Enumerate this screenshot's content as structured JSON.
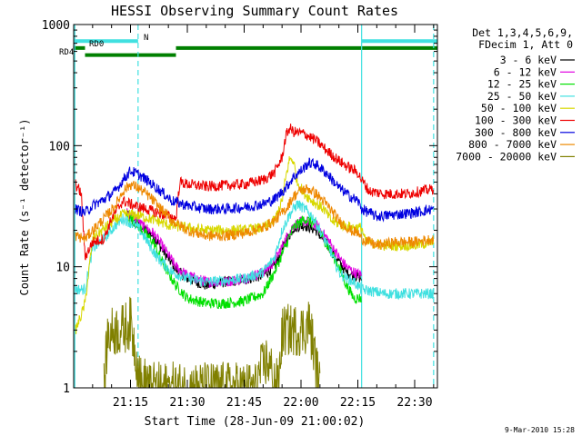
{
  "chart_data": {
    "type": "line",
    "title": "HESSI Observing Summary Count Rates",
    "xlabel": "Start Time (28-Jun-09 21:00:02)",
    "ylabel": "Count Rate (s⁻¹ detector⁻¹)",
    "y_scale": "log",
    "ylim": [
      1,
      1000
    ],
    "xlim_minutes": [
      0,
      96
    ],
    "x_ticks": [
      {
        "minute": 15,
        "label": "21:15"
      },
      {
        "minute": 30,
        "label": "21:30"
      },
      {
        "minute": 45,
        "label": "21:45"
      },
      {
        "minute": 60,
        "label": "22:00"
      },
      {
        "minute": 75,
        "label": "22:15"
      },
      {
        "minute": 90,
        "label": "22:30"
      }
    ],
    "y_ticks": [
      {
        "value": 1,
        "label": "1"
      },
      {
        "value": 10,
        "label": "10"
      },
      {
        "value": 100,
        "label": "100"
      },
      {
        "value": 1000,
        "label": "1000"
      }
    ],
    "legend_header": [
      "Det 1,3,4,5,6,9,",
      "FDecim 1, Att 0"
    ],
    "legend_position": "right",
    "flags": [
      {
        "label": "N",
        "color": "#40e0e0",
        "segments": [
          [
            0,
            17
          ],
          [
            76,
            96
          ]
        ],
        "level": 730
      },
      {
        "label": "RD0",
        "color": "#008000",
        "segments": [
          [
            0,
            3
          ],
          [
            27,
            96
          ]
        ],
        "level": 640
      },
      {
        "label": "RD4",
        "color": "#008000",
        "segments": [
          [
            3,
            27
          ]
        ],
        "level": 560
      }
    ],
    "vlines_solid": [
      0.3,
      76
    ],
    "vlines_dashed": [
      17,
      95
    ],
    "series": [
      {
        "name": "3 - 6 keV",
        "color": "#000000",
        "points": [
          [
            14,
            27
          ],
          [
            16,
            23
          ],
          [
            18,
            21
          ],
          [
            21,
            18
          ],
          [
            24,
            13
          ],
          [
            27,
            9.5
          ],
          [
            30,
            8
          ],
          [
            35,
            7
          ],
          [
            40,
            7.5
          ],
          [
            45,
            7.8
          ],
          [
            50,
            8.5
          ],
          [
            53,
            10
          ],
          [
            56,
            16
          ],
          [
            58,
            21
          ],
          [
            61,
            22
          ],
          [
            64,
            20
          ],
          [
            67,
            15
          ],
          [
            70,
            11
          ],
          [
            72,
            9
          ],
          [
            74,
            8.5
          ],
          [
            76,
            8
          ]
        ]
      },
      {
        "name": "6 - 12 keV",
        "color": "#e000e0",
        "points": [
          [
            14,
            28
          ],
          [
            16,
            26
          ],
          [
            18,
            22
          ],
          [
            21,
            19
          ],
          [
            24,
            14
          ],
          [
            27,
            10
          ],
          [
            30,
            8.5
          ],
          [
            35,
            7.5
          ],
          [
            40,
            7.5
          ],
          [
            45,
            8
          ],
          [
            50,
            9
          ],
          [
            53,
            11
          ],
          [
            56,
            17
          ],
          [
            58,
            22
          ],
          [
            61,
            24
          ],
          [
            64,
            22
          ],
          [
            67,
            17
          ],
          [
            70,
            12
          ],
          [
            72,
            10
          ],
          [
            74,
            9
          ],
          [
            76,
            8.5
          ]
        ]
      },
      {
        "name": "12 - 25 keV",
        "color": "#00e000",
        "points": [
          [
            14,
            26
          ],
          [
            16,
            24
          ],
          [
            18,
            20
          ],
          [
            21,
            16
          ],
          [
            24,
            10
          ],
          [
            27,
            7
          ],
          [
            30,
            5.5
          ],
          [
            35,
            5
          ],
          [
            40,
            5
          ],
          [
            45,
            5.2
          ],
          [
            50,
            6
          ],
          [
            53,
            9
          ],
          [
            56,
            15
          ],
          [
            58,
            21
          ],
          [
            61,
            25
          ],
          [
            64,
            22
          ],
          [
            67,
            15
          ],
          [
            70,
            10
          ],
          [
            72,
            7
          ],
          [
            74,
            5.5
          ],
          [
            76,
            5.5
          ]
        ]
      },
      {
        "name": "25 - 50 keV",
        "color": "#40e0e0",
        "points": [
          [
            0.5,
            6.5
          ],
          [
            3,
            6.5
          ],
          [
            5,
            14
          ],
          [
            8,
            17
          ],
          [
            11,
            22
          ],
          [
            13,
            25
          ],
          [
            15,
            23
          ],
          [
            17,
            21
          ],
          [
            19,
            17
          ],
          [
            22,
            12
          ],
          [
            26,
            9
          ],
          [
            30,
            8
          ],
          [
            35,
            7.5
          ],
          [
            40,
            7.7
          ],
          [
            45,
            8
          ],
          [
            50,
            9
          ],
          [
            53,
            12
          ],
          [
            55,
            20
          ],
          [
            57,
            27
          ],
          [
            59,
            33
          ],
          [
            61,
            30
          ],
          [
            63,
            26
          ],
          [
            65,
            20
          ],
          [
            68,
            13
          ],
          [
            70,
            9
          ],
          [
            72,
            8
          ],
          [
            74,
            7.5
          ],
          [
            76,
            6.5
          ],
          [
            82,
            6
          ],
          [
            90,
            6
          ],
          [
            95,
            6
          ]
        ]
      },
      {
        "name": "50 - 100 keV",
        "color": "#d8d800",
        "points": [
          [
            0.5,
            3
          ],
          [
            2,
            4
          ],
          [
            3,
            5
          ],
          [
            5,
            17
          ],
          [
            9,
            22
          ],
          [
            13,
            27
          ],
          [
            16,
            27
          ],
          [
            18,
            26
          ],
          [
            22,
            24
          ],
          [
            25,
            22
          ],
          [
            30,
            21
          ],
          [
            35,
            20
          ],
          [
            40,
            20
          ],
          [
            45,
            20
          ],
          [
            50,
            21
          ],
          [
            53,
            24
          ],
          [
            55,
            35
          ],
          [
            56,
            55
          ],
          [
            57,
            78
          ],
          [
            58,
            75
          ],
          [
            59,
            50
          ],
          [
            61,
            40
          ],
          [
            63,
            35
          ],
          [
            66,
            30
          ],
          [
            68,
            24
          ],
          [
            71,
            22
          ],
          [
            74,
            21
          ],
          [
            76,
            21
          ],
          [
            77,
            16
          ],
          [
            82,
            15
          ],
          [
            90,
            15
          ],
          [
            95,
            16
          ]
        ]
      },
      {
        "name": "100 - 300 keV",
        "color": "#ee0000",
        "points": [
          [
            0.5,
            48
          ],
          [
            2,
            40
          ],
          [
            3,
            12
          ],
          [
            5,
            16
          ],
          [
            8,
            17
          ],
          [
            10,
            25
          ],
          [
            13,
            35
          ],
          [
            16,
            32
          ],
          [
            19,
            30
          ],
          [
            22,
            28
          ],
          [
            25,
            26
          ],
          [
            27,
            25
          ],
          [
            28,
            50
          ],
          [
            30,
            48
          ],
          [
            35,
            46
          ],
          [
            40,
            47
          ],
          [
            45,
            48
          ],
          [
            50,
            52
          ],
          [
            53,
            60
          ],
          [
            55,
            80
          ],
          [
            56,
            120
          ],
          [
            57,
            140
          ],
          [
            58,
            130
          ],
          [
            61,
            125
          ],
          [
            64,
            110
          ],
          [
            67,
            90
          ],
          [
            70,
            75
          ],
          [
            73,
            65
          ],
          [
            75,
            60
          ],
          [
            76,
            52
          ],
          [
            78,
            42
          ],
          [
            82,
            40
          ],
          [
            88,
            40
          ],
          [
            95,
            44
          ]
        ]
      },
      {
        "name": "300 - 800 keV",
        "color": "#0000e0",
        "points": [
          [
            0.5,
            30
          ],
          [
            3,
            28
          ],
          [
            5,
            32
          ],
          [
            8,
            36
          ],
          [
            11,
            42
          ],
          [
            13,
            52
          ],
          [
            15,
            62
          ],
          [
            17,
            58
          ],
          [
            20,
            50
          ],
          [
            23,
            42
          ],
          [
            26,
            35
          ],
          [
            30,
            32
          ],
          [
            35,
            30
          ],
          [
            40,
            30
          ],
          [
            45,
            31
          ],
          [
            50,
            33
          ],
          [
            53,
            36
          ],
          [
            56,
            45
          ],
          [
            58,
            55
          ],
          [
            60,
            62
          ],
          [
            62,
            72
          ],
          [
            64,
            70
          ],
          [
            67,
            58
          ],
          [
            70,
            45
          ],
          [
            73,
            38
          ],
          [
            75,
            35
          ],
          [
            76,
            30
          ],
          [
            80,
            26
          ],
          [
            85,
            27
          ],
          [
            90,
            28
          ],
          [
            95,
            30
          ]
        ]
      },
      {
        "name": "800 - 7000 keV",
        "color": "#ee8800",
        "points": [
          [
            0.5,
            18
          ],
          [
            3,
            17
          ],
          [
            5,
            20
          ],
          [
            8,
            25
          ],
          [
            11,
            32
          ],
          [
            13,
            42
          ],
          [
            15,
            48
          ],
          [
            17,
            45
          ],
          [
            20,
            38
          ],
          [
            23,
            30
          ],
          [
            26,
            24
          ],
          [
            30,
            20
          ],
          [
            35,
            18
          ],
          [
            40,
            18
          ],
          [
            45,
            19
          ],
          [
            50,
            21
          ],
          [
            53,
            24
          ],
          [
            56,
            30
          ],
          [
            58,
            38
          ],
          [
            60,
            43
          ],
          [
            62,
            44
          ],
          [
            64,
            40
          ],
          [
            67,
            32
          ],
          [
            70,
            24
          ],
          [
            73,
            20
          ],
          [
            75,
            19
          ],
          [
            76,
            17
          ],
          [
            80,
            15
          ],
          [
            85,
            16
          ],
          [
            90,
            16
          ],
          [
            95,
            17
          ]
        ]
      },
      {
        "name": "7000 - 20000 keV",
        "color": "#808000",
        "points": [
          [
            8,
            1
          ],
          [
            9,
            2.7
          ],
          [
            11,
            3
          ],
          [
            13,
            3
          ],
          [
            15,
            3.5
          ],
          [
            17,
            1.5
          ],
          [
            18,
            1
          ],
          [
            19.5,
            1.2
          ],
          [
            20,
            1
          ],
          [
            48,
            1
          ],
          [
            49,
            1.3
          ],
          [
            51,
            1.7
          ],
          [
            54,
            1
          ],
          [
            55,
            2.8
          ],
          [
            56,
            3
          ],
          [
            58,
            3
          ],
          [
            61,
            3
          ],
          [
            62,
            3.5
          ],
          [
            63,
            2.5
          ],
          [
            64,
            1.5
          ],
          [
            65,
            1
          ]
        ]
      }
    ]
  },
  "footer": {
    "date": "9-Mar-2010 15:28"
  }
}
